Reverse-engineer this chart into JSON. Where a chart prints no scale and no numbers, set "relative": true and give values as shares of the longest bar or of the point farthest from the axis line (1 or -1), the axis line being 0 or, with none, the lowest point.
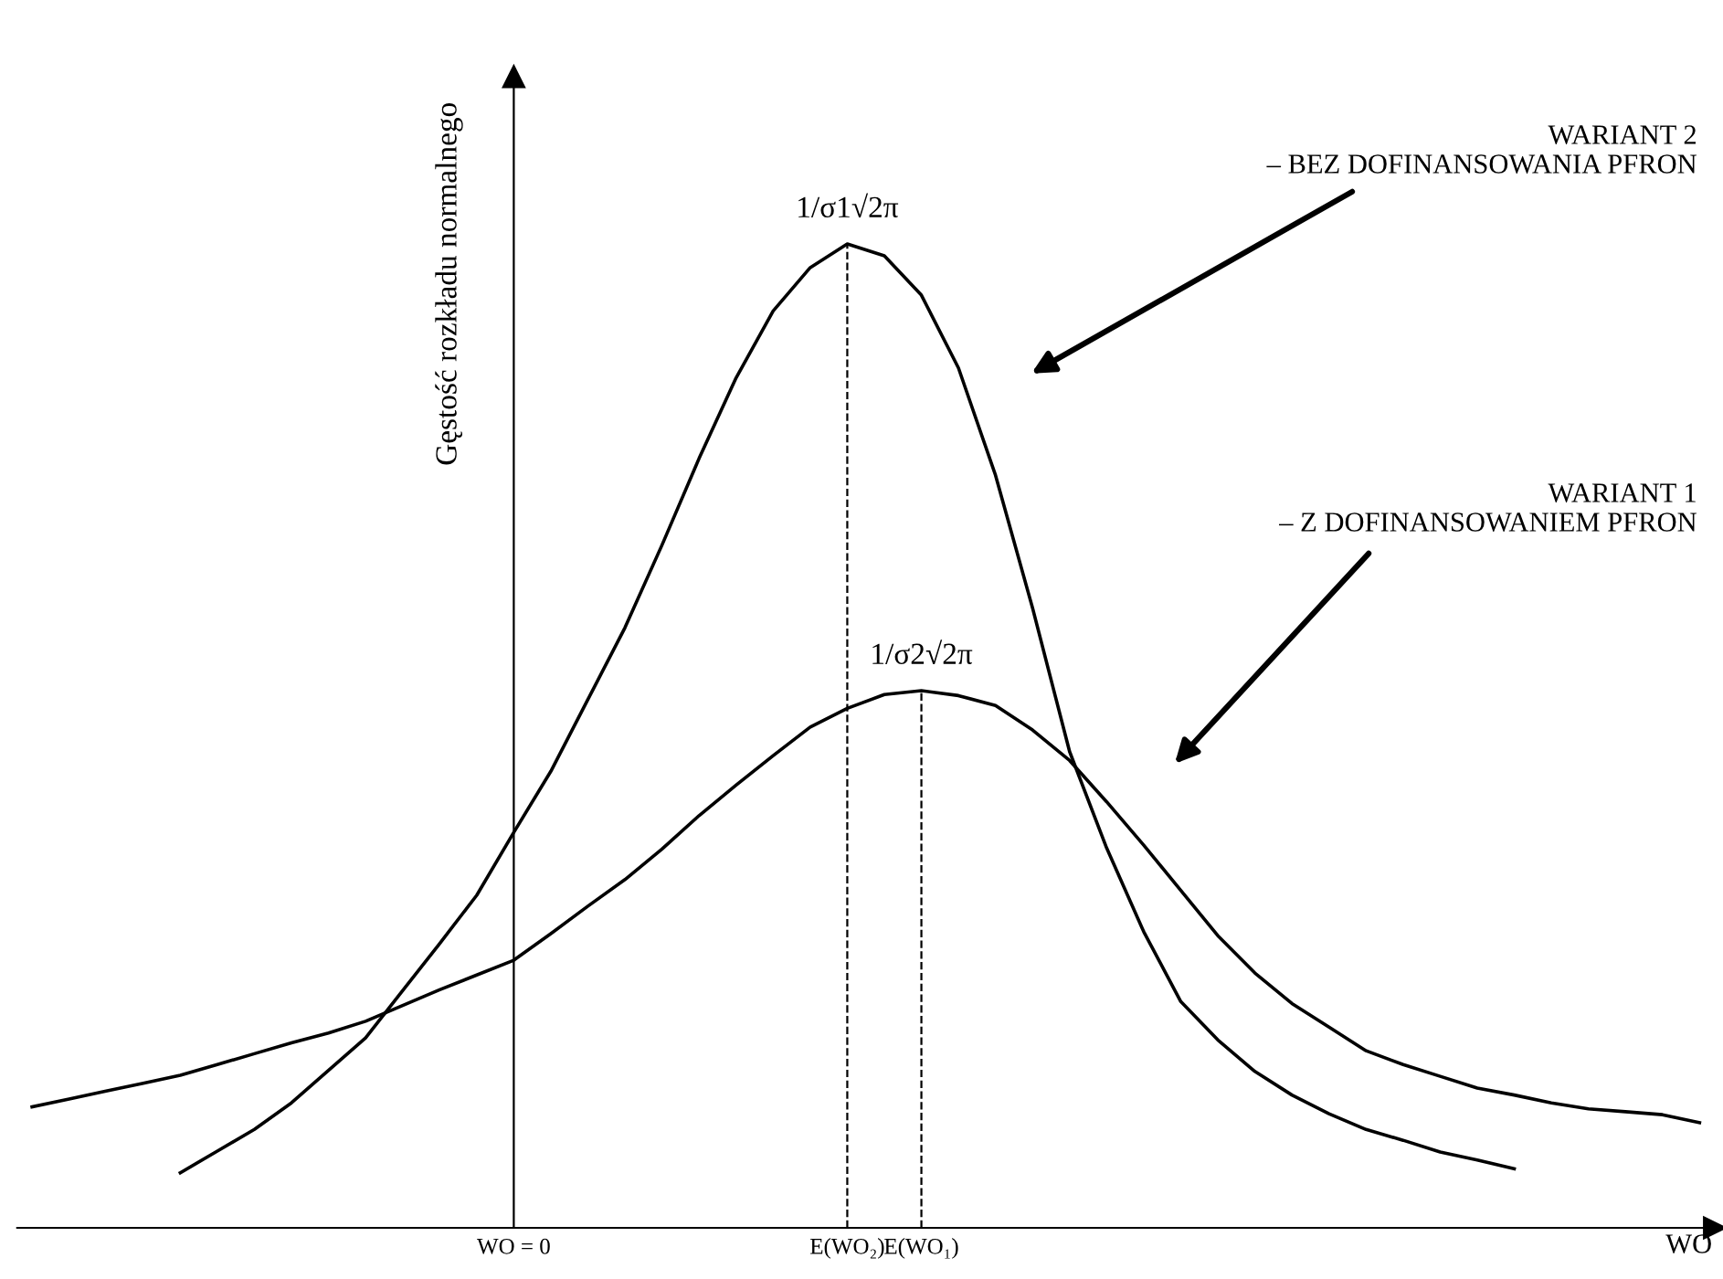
{
  "chart_data": {
    "type": "line",
    "relative": true,
    "xlabel": "WO",
    "ylabel": "Gęstość rozkładu normalnego",
    "categories": [
      null,
      null,
      null,
      null,
      null,
      null,
      null,
      null,
      null,
      null,
      null,
      null,
      null,
      "WO = 0",
      null,
      null,
      null,
      null,
      null,
      null,
      null,
      null,
      "E(WO₂)",
      null,
      "E(WO₁)",
      null,
      null,
      null,
      null,
      null,
      null,
      null,
      null,
      null,
      null,
      null,
      null,
      null,
      null,
      null,
      null,
      null,
      null,
      null,
      null,
      null
    ],
    "tick_labels": "x",
    "series": [
      {
        "color": "#000000",
        "values": [
          null,
          null,
          null,
          null,
          0.056,
          0.078,
          0.1,
          0.127,
          0.16,
          0.193,
          0.241,
          0.289,
          0.338,
          0.402,
          0.464,
          0.537,
          0.61,
          0.694,
          0.782,
          0.864,
          0.932,
          0.976,
          1,
          0.988,
          0.948,
          0.874,
          0.765,
          0.63,
          0.484,
          0.386,
          0.301,
          0.23,
          0.191,
          0.159,
          0.135,
          0.116,
          0.1,
          0.089,
          0.077,
          0.069,
          0.06,
          null,
          null,
          null,
          null,
          null
        ]
      },
      {
        "color": "#000000",
        "values": [
          0.123,
          0.131,
          0.139,
          0.147,
          0.155,
          0.166,
          0.177,
          0.188,
          0.198,
          0.21,
          0.226,
          0.242,
          0.257,
          0.272,
          0.299,
          0.327,
          0.354,
          0.385,
          0.419,
          0.45,
          0.48,
          0.509,
          0.528,
          0.542,
          0.546,
          0.541,
          0.531,
          0.506,
          0.475,
          0.433,
          0.389,
          0.343,
          0.297,
          0.259,
          0.228,
          0.204,
          0.18,
          0.166,
          0.154,
          0.142,
          0.135,
          0.127,
          0.121,
          0.118,
          0.115,
          0.107
        ]
      }
    ],
    "annotations": [
      {
        "text": "1/σ1√2π",
        "x": "E(WO₂)",
        "y": 1
      },
      {
        "text": "1/σ2√2π",
        "x": "E(WO₁)",
        "y": 0.546
      },
      "WARIANT 2\n– BEZ DOFINANSOWANIA PFRON",
      "WARIANT 1\n– Z DOFINANSOWANIEM PFRON"
    ]
  }
}
